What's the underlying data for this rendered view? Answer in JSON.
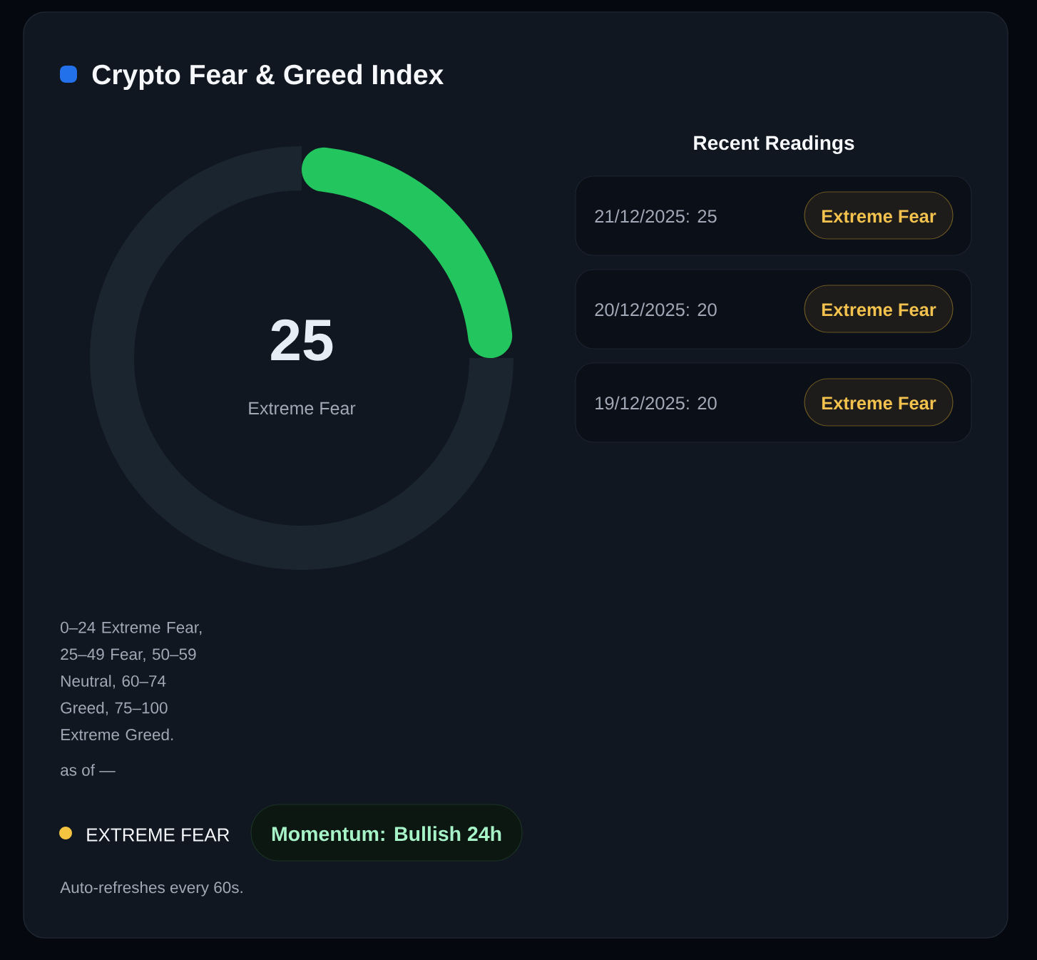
{
  "chart_data": [
    {
      "type": "donut",
      "title": "Crypto Fear & Greed Index",
      "categories": [
        null,
        null
      ],
      "values": [
        25,
        75
      ],
      "colors": [
        "#22c55e",
        "#1b2530"
      ],
      "value_labels": [
        "25",
        null
      ],
      "annotations": [
        "Extreme Fear",
        "0–24 Extreme Fear, 25–49 Fear, 50–59 Neutral, 60–74 Greed, 75–100 Extreme Greed.",
        "as of —",
        "EXTREME FEAR",
        "Momentum: Bullish 24h",
        "Auto-refreshes every 60s."
      ]
    },
    {
      "type": "other",
      "title": "Recent Readings",
      "annotations": [
        "21/12/2025: 25",
        "Extreme Fear",
        "20/12/2025: 20",
        "Extreme Fear",
        "19/12/2025: 20",
        "Extreme Fear"
      ]
    }
  ]
}
